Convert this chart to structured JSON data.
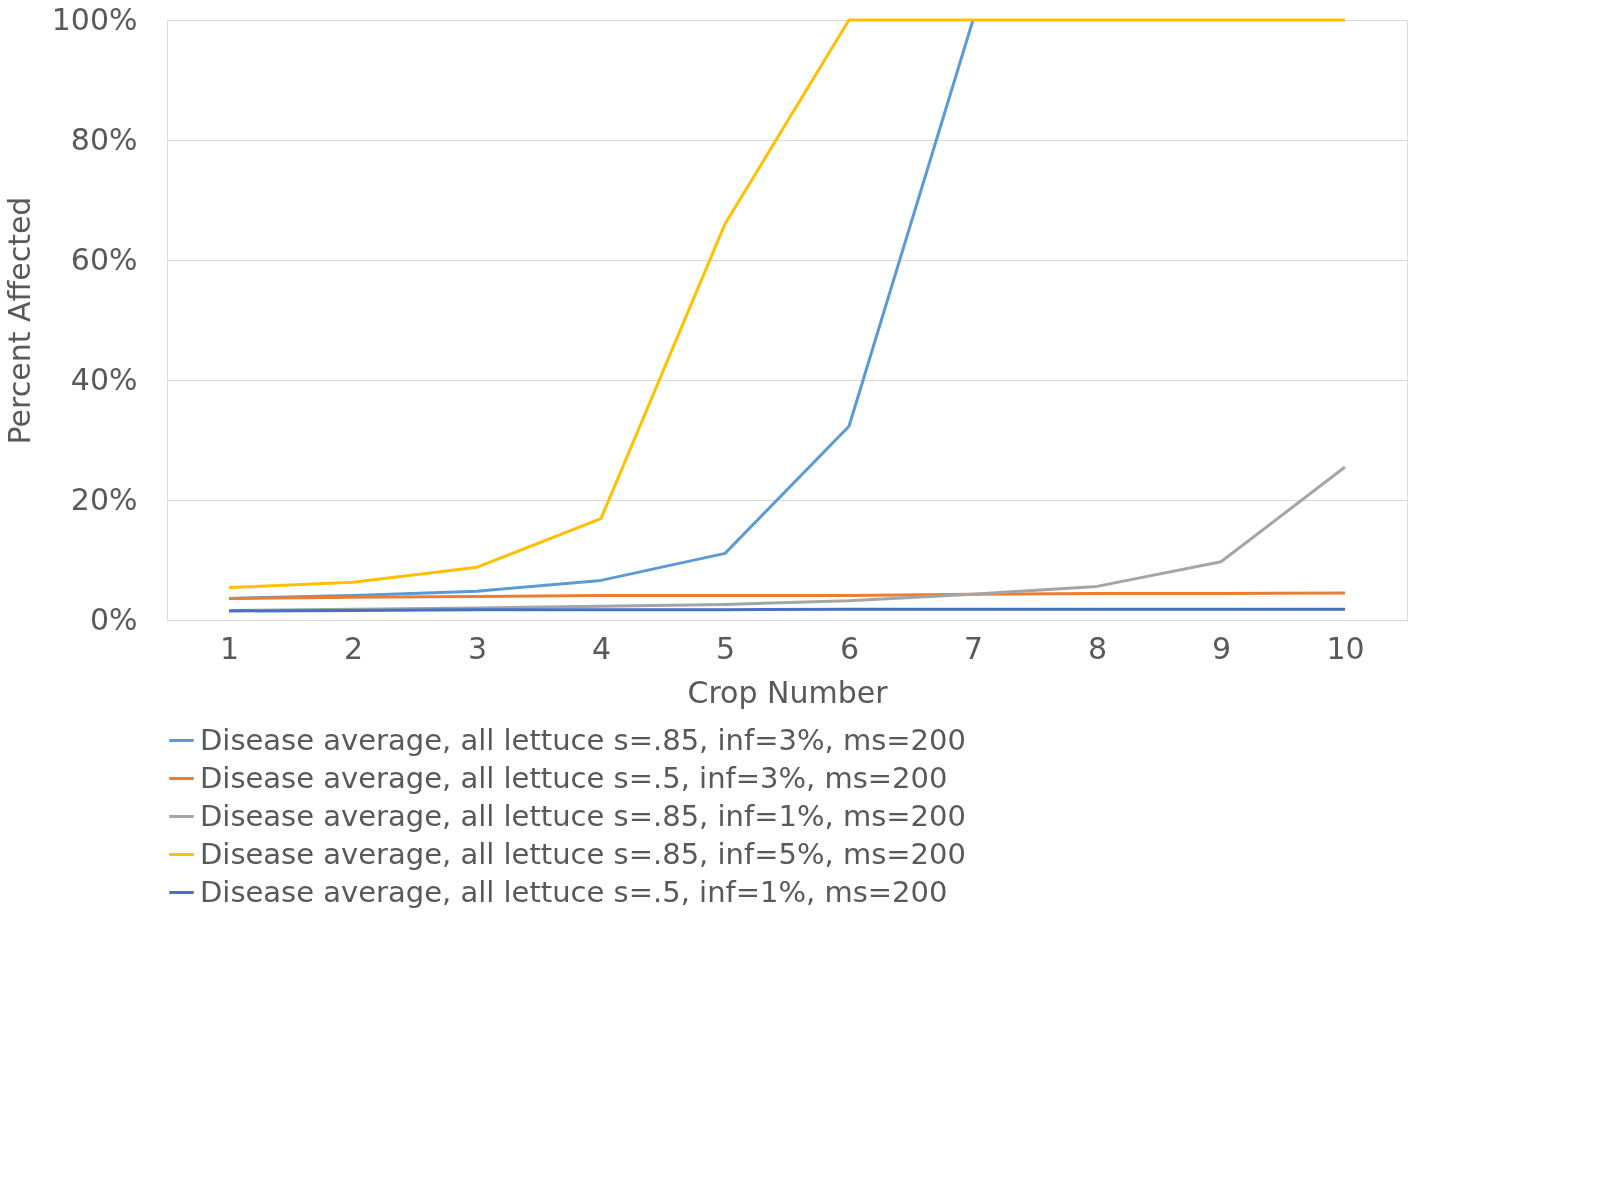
{
  "chart_data": {
    "type": "line",
    "xlabel": "Crop Number",
    "ylabel": "Percent Affected",
    "categories": [
      "1",
      "2",
      "3",
      "4",
      "5",
      "6",
      "7",
      "8",
      "9",
      "10"
    ],
    "ylim": [
      0,
      100
    ],
    "yticks": [
      {
        "value": 0,
        "label": "0%"
      },
      {
        "value": 20,
        "label": "20%"
      },
      {
        "value": 40,
        "label": "40%"
      },
      {
        "value": 60,
        "label": "60%"
      },
      {
        "value": 80,
        "label": "80%"
      },
      {
        "value": 100,
        "label": "100%"
      }
    ],
    "grid": "y",
    "legend": "bottom",
    "marker": "none",
    "line_style": "solid",
    "series": [
      {
        "name": "Disease average, all lettuce s=.85, inf=3%, ms=200",
        "color": "#5b9bd5",
        "values": [
          3.6,
          4.1,
          4.8,
          6.6,
          11.1,
          32.3,
          100,
          null,
          null,
          null
        ]
      },
      {
        "name": "Disease average, all lettuce s=.5, inf=3%, ms=200",
        "color": "#ed7d31",
        "values": [
          3.6,
          3.8,
          3.9,
          4.1,
          4.1,
          4.1,
          4.3,
          4.4,
          4.4,
          4.5
        ]
      },
      {
        "name": "Disease average, all lettuce s=.85, inf=1%, ms=200",
        "color": "#a5a5a5",
        "values": [
          1.6,
          1.8,
          2.0,
          2.3,
          2.6,
          3.2,
          4.3,
          5.6,
          9.7,
          25.5
        ]
      },
      {
        "name": "Disease average, all lettuce s=.85, inf=5%, ms=200",
        "color": "#ffc000",
        "values": [
          5.4,
          6.3,
          8.8,
          16.9,
          66,
          100,
          100,
          100,
          100,
          100
        ]
      },
      {
        "name": "Disease average, all lettuce s=.5, inf=1%, ms=200",
        "color": "#4472c4",
        "values": [
          1.5,
          1.6,
          1.7,
          1.7,
          1.7,
          1.8,
          1.8,
          1.8,
          1.8,
          1.8
        ]
      }
    ]
  }
}
